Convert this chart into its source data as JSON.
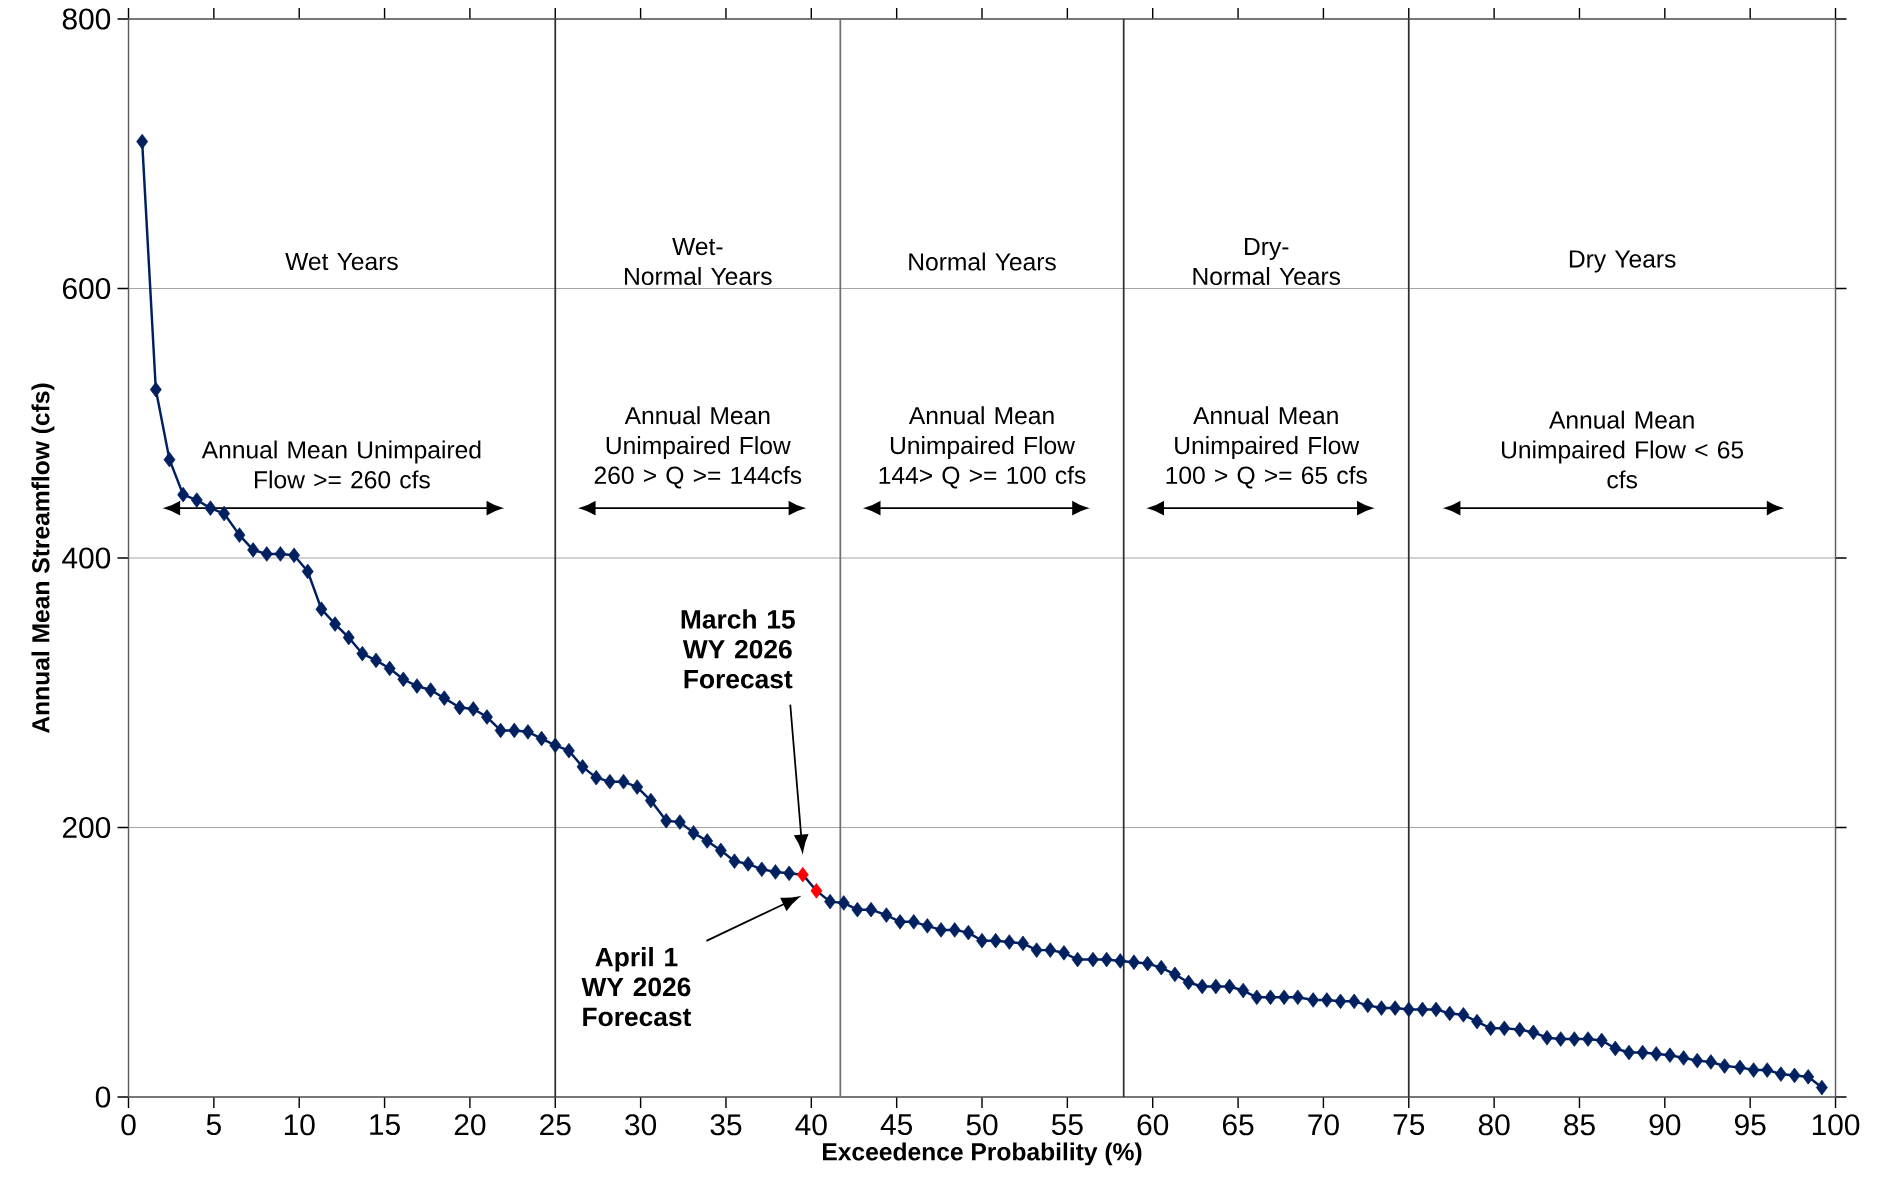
{
  "chart_data": {
    "type": "line",
    "xlabel": "Exceedence Probability (%)",
    "ylabel": "Annual Mean Streamflow (cfs)",
    "xlim": [
      0,
      100
    ],
    "ylim": [
      0,
      800
    ],
    "xticks": [
      0,
      5,
      10,
      15,
      20,
      25,
      30,
      35,
      40,
      45,
      50,
      55,
      60,
      65,
      70,
      75,
      80,
      85,
      90,
      95,
      100
    ],
    "yticks": [
      0,
      200,
      400,
      600,
      800
    ],
    "grid": "y",
    "marker": "diamond",
    "line_style": "solid",
    "x": [
      0.8,
      1.6,
      2.4,
      3.2,
      4.0,
      4.8,
      5.6,
      6.5,
      7.3,
      8.1,
      8.9,
      9.7,
      10.5,
      11.3,
      12.1,
      12.9,
      13.7,
      14.5,
      15.3,
      16.1,
      16.9,
      17.7,
      18.5,
      19.4,
      20.2,
      21.0,
      21.8,
      22.6,
      23.4,
      24.2,
      25.0,
      25.8,
      26.6,
      27.4,
      28.2,
      29.0,
      29.8,
      30.6,
      31.5,
      32.3,
      33.1,
      33.9,
      34.7,
      35.5,
      36.3,
      37.1,
      37.9,
      38.7,
      39.5,
      40.3,
      41.1,
      41.9,
      42.7,
      43.5,
      44.4,
      45.2,
      46.0,
      46.8,
      47.6,
      48.4,
      49.2,
      50.0,
      50.8,
      51.6,
      52.4,
      53.2,
      54.0,
      54.8,
      55.6,
      56.5,
      57.3,
      58.1,
      58.9,
      59.7,
      60.5,
      61.3,
      62.1,
      62.9,
      63.7,
      64.5,
      65.3,
      66.1,
      66.9,
      67.7,
      68.5,
      69.4,
      70.2,
      71.0,
      71.8,
      72.6,
      73.4,
      74.2,
      75.0,
      75.8,
      76.6,
      77.4,
      78.2,
      79.0,
      79.8,
      80.6,
      81.5,
      82.3,
      83.1,
      83.9,
      84.7,
      85.5,
      86.3,
      87.1,
      87.9,
      88.7,
      89.5,
      90.3,
      91.1,
      91.9,
      92.7,
      93.5,
      94.4,
      95.2,
      96.0,
      96.8,
      97.6,
      98.4,
      99.2
    ],
    "series": [
      {
        "color": "#002060",
        "values": [
          709,
          525,
          473,
          447,
          443,
          437,
          433,
          417,
          406,
          403,
          403,
          402,
          390,
          362,
          351,
          341,
          329,
          324,
          318,
          310,
          305,
          302,
          296,
          289,
          288,
          282,
          272,
          272,
          271,
          266,
          261,
          257,
          245,
          237,
          234,
          234,
          230,
          220,
          205,
          204,
          196,
          190,
          183,
          175,
          173,
          169,
          167,
          166,
          165,
          153,
          145,
          144,
          139,
          139,
          135,
          130,
          130,
          127,
          124,
          124,
          122,
          116,
          116,
          115,
          114,
          109,
          109,
          107,
          102,
          102,
          102,
          101,
          100,
          99,
          96,
          91,
          85,
          82,
          82,
          82,
          79,
          74,
          74,
          74,
          74,
          72,
          72,
          71,
          71,
          68,
          66,
          66,
          65,
          65,
          65,
          62,
          61,
          56,
          51,
          51,
          50,
          48,
          44,
          43,
          43,
          43,
          42,
          36,
          33,
          33,
          32,
          31,
          29,
          27,
          26,
          23,
          22,
          20,
          20,
          17,
          16,
          15,
          7
        ],
        "colors": [
          "#002060",
          "#002060",
          "#002060",
          "#002060",
          "#002060",
          "#002060",
          "#002060",
          "#002060",
          "#002060",
          "#002060",
          "#002060",
          "#002060",
          "#002060",
          "#002060",
          "#002060",
          "#002060",
          "#002060",
          "#002060",
          "#002060",
          "#002060",
          "#002060",
          "#002060",
          "#002060",
          "#002060",
          "#002060",
          "#002060",
          "#002060",
          "#002060",
          "#002060",
          "#002060",
          "#002060",
          "#002060",
          "#002060",
          "#002060",
          "#002060",
          "#002060",
          "#002060",
          "#002060",
          "#002060",
          "#002060",
          "#002060",
          "#002060",
          "#002060",
          "#002060",
          "#002060",
          "#002060",
          "#002060",
          "#002060",
          "#ff0000",
          "#ff0000",
          "#002060",
          "#002060",
          "#002060",
          "#002060",
          "#002060",
          "#002060",
          "#002060",
          "#002060",
          "#002060",
          "#002060",
          "#002060",
          "#002060",
          "#002060",
          "#002060",
          "#002060",
          "#002060",
          "#002060",
          "#002060",
          "#002060",
          "#002060",
          "#002060",
          "#002060",
          "#002060",
          "#002060",
          "#002060",
          "#002060",
          "#002060",
          "#002060",
          "#002060",
          "#002060",
          "#002060",
          "#002060",
          "#002060",
          "#002060",
          "#002060",
          "#002060",
          "#002060",
          "#002060",
          "#002060",
          "#002060",
          "#002060",
          "#002060",
          "#002060",
          "#002060",
          "#002060",
          "#002060",
          "#002060",
          "#002060",
          "#002060",
          "#002060",
          "#002060",
          "#002060",
          "#002060",
          "#002060",
          "#002060",
          "#002060",
          "#002060",
          "#002060",
          "#002060",
          "#002060",
          "#002060",
          "#002060",
          "#002060",
          "#002060",
          "#002060",
          "#002060",
          "#002060",
          "#002060",
          "#002060",
          "#002060",
          "#002060",
          "#002060",
          "#002060"
        ]
      }
    ],
    "ref_lines": [
      {
        "axis": "x",
        "value": 25,
        "color": "#303030"
      },
      {
        "axis": "x",
        "value": 41.7,
        "color": "#707070"
      },
      {
        "axis": "x",
        "value": 58.3,
        "color": "#303030"
      },
      {
        "axis": "x",
        "value": 75,
        "color": "#303030"
      }
    ],
    "annotations": [
      "Wet Years",
      "Wet-\nNormal Years",
      "Normal Years",
      "Dry-\nNormal Years",
      "Dry Years",
      "Annual Mean Unimpaired\nFlow >= 260 cfs",
      "Annual Mean\nUnimpaired Flow\n260 > Q >= 144cfs",
      "Annual Mean\nUnimpaired Flow\n144> Q >= 100 cfs",
      "Annual Mean\nUnimpaired Flow\n100 > Q >= 65 cfs",
      "Annual Mean\nUnimpaired Flow < 65\ncfs",
      "March 15\nWY 2026\nForecast",
      "April 1\nWY 2026\nForecast"
    ]
  }
}
